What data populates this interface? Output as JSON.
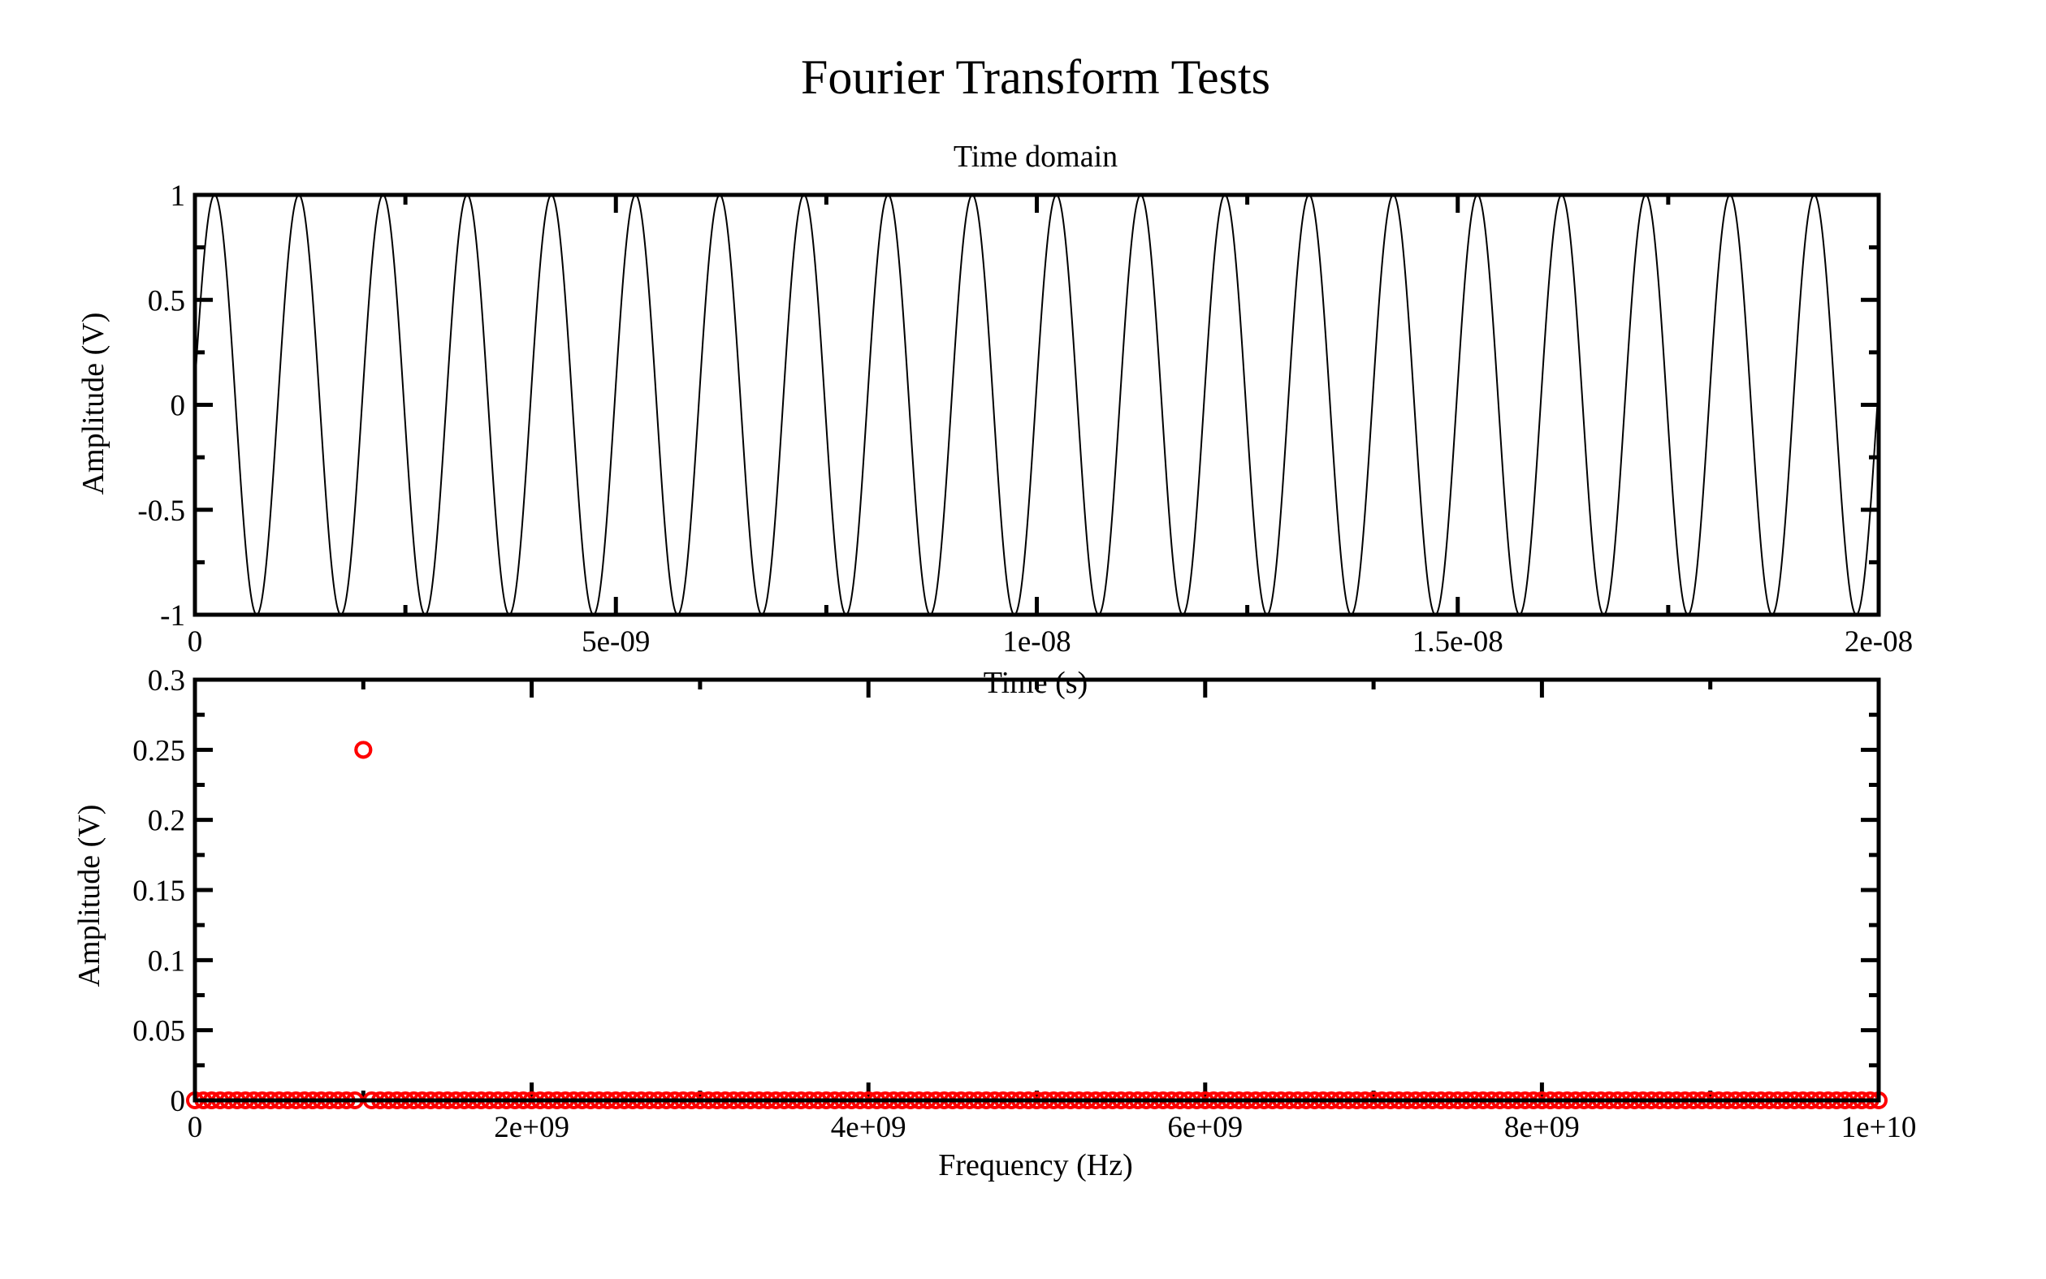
{
  "figure": {
    "title": "Fourier Transform Tests"
  },
  "chart_data": [
    {
      "type": "line",
      "title": "Time domain",
      "xlabel": "Time (s)",
      "ylabel": "Amplitude (V)",
      "xlim": [
        0,
        2e-08
      ],
      "ylim": [
        -1,
        1
      ],
      "x_ticks": [
        {
          "value": 0,
          "label": "0"
        },
        {
          "value": 5e-09,
          "label": "5e-09"
        },
        {
          "value": 1e-08,
          "label": "1e-08"
        },
        {
          "value": 1.5e-08,
          "label": "1.5e-08"
        },
        {
          "value": 2e-08,
          "label": "2e-08"
        }
      ],
      "y_ticks": [
        {
          "value": 1,
          "label": "1"
        },
        {
          "value": 0.5,
          "label": "0.5"
        },
        {
          "value": 0,
          "label": "0"
        },
        {
          "value": -0.5,
          "label": "-0.5"
        },
        {
          "value": -1,
          "label": "-1"
        }
      ],
      "grid": false,
      "series": [
        {
          "color": "#000000",
          "function": "sine",
          "amplitude": 1,
          "frequency_hz": 1000000000.0,
          "phase_rad": 0.1
        }
      ]
    },
    {
      "type": "scatter",
      "title": "",
      "xlabel": "Frequency (Hz)",
      "ylabel": "Amplitude (V)",
      "xlim": [
        0,
        10000000000.0
      ],
      "ylim": [
        0,
        0.3
      ],
      "x_ticks": [
        {
          "value": 0,
          "label": "0"
        },
        {
          "value": 2000000000.0,
          "label": "2e+09"
        },
        {
          "value": 4000000000.0,
          "label": "4e+09"
        },
        {
          "value": 6000000000.0,
          "label": "6e+09"
        },
        {
          "value": 8000000000.0,
          "label": "8e+09"
        },
        {
          "value": 10000000000.0,
          "label": "1e+10"
        }
      ],
      "y_ticks": [
        {
          "value": 0.3,
          "label": "0.3"
        },
        {
          "value": 0.25,
          "label": "0.25"
        },
        {
          "value": 0.2,
          "label": "0.2"
        },
        {
          "value": 0.15,
          "label": "0.15"
        },
        {
          "value": 0.1,
          "label": "0.1"
        },
        {
          "value": 0.05,
          "label": "0.05"
        },
        {
          "value": 0,
          "label": "0"
        }
      ],
      "grid": false,
      "series": [
        {
          "color": "#ff0000",
          "marker": "circle-open",
          "x_step": 50000000.0,
          "x_range": [
            0,
            10000000000.0
          ],
          "default_value": 0,
          "peaks": [
            {
              "x": 1000000000.0,
              "y": 0.25
            }
          ]
        }
      ]
    }
  ]
}
